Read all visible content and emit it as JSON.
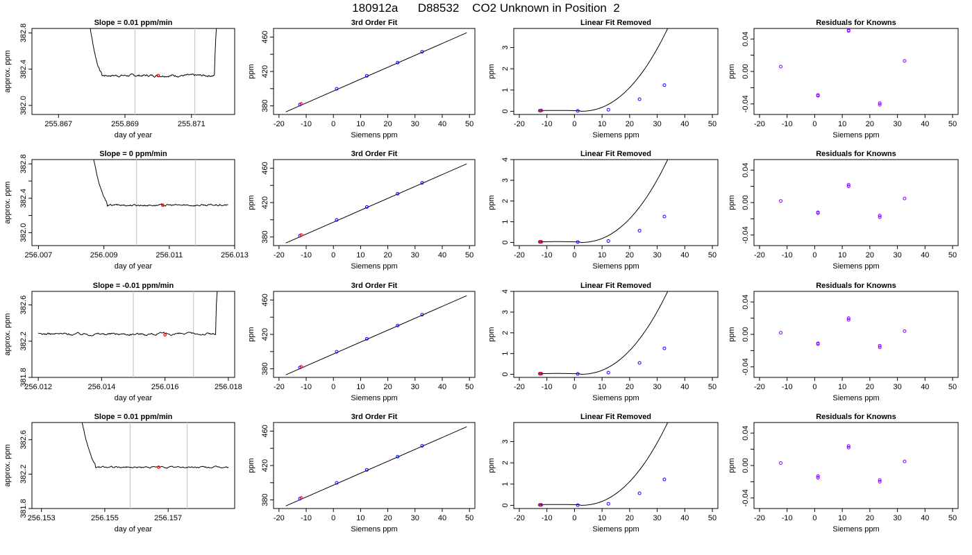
{
  "header": {
    "title": "180912a      D88532    CO2 Unknown in Position  2"
  },
  "style": {
    "trace_color": "#000000",
    "marker_color": "#ff0000",
    "known_color": "#0000ff",
    "residual_color": "#8000ff",
    "window_line_color": "#c8c8c8"
  },
  "chart_data": [
    {
      "type": "line",
      "row": 1,
      "panel": "time-series",
      "title": "Slope =  0.01  ppm/min",
      "xlabel": "day of year",
      "ylabel": "approx. ppm",
      "xlim": [
        255.8662,
        255.8723
      ],
      "ylim": [
        381.9,
        382.85
      ],
      "xticks": [
        255.867,
        255.869,
        255.871
      ],
      "xtick_labels": [
        "255.867",
        "255.869",
        "255.871"
      ],
      "yticks": [
        382.0,
        382.4,
        382.8
      ],
      "ytick_labels": [
        "382.0",
        "382.4",
        "382.8"
      ],
      "trace": {
        "x_start": 255.8678,
        "x_end": 255.8718,
        "drop_to": 382.36,
        "level": 382.33,
        "settle": 255.8683,
        "rise_at": 255.8717,
        "noise": 0.009,
        "end_value": 382.9
      },
      "window": [
        255.8693,
        255.8711
      ],
      "marker": {
        "x": 255.87,
        "y": 382.33
      }
    },
    {
      "type": "line",
      "row": 2,
      "panel": "time-series",
      "title": "Slope =  0  ppm/min",
      "xlabel": "day of year",
      "ylabel": "approx. ppm",
      "xlim": [
        256.0068,
        256.013
      ],
      "ylim": [
        381.85,
        382.85
      ],
      "xticks": [
        256.007,
        256.009,
        256.011,
        256.013
      ],
      "xtick_labels": [
        "256.007",
        "256.009",
        "256.011",
        "256.013"
      ],
      "yticks": [
        382.0,
        382.2,
        382.4,
        382.6,
        382.8
      ],
      "ytick_labels": [
        "382.0",
        "",
        "382.4",
        "",
        "382.8"
      ],
      "trace": {
        "x_start": 256.0085,
        "x_end": 256.0128,
        "drop_to": 382.36,
        "level": 382.32,
        "settle": 256.0091,
        "rise_at": null,
        "noise": 0.008,
        "end_value": 382.31
      },
      "window": [
        256.01,
        256.0118
      ],
      "marker": {
        "x": 256.0108,
        "y": 382.32
      }
    },
    {
      "type": "line",
      "row": 3,
      "panel": "time-series",
      "title": "Slope =  -0.01  ppm/min",
      "xlabel": "day of year",
      "ylabel": "approx. ppm",
      "xlim": [
        256.0118,
        256.0182
      ],
      "ylim": [
        381.8,
        382.75
      ],
      "xticks": [
        256.012,
        256.014,
        256.016,
        256.018
      ],
      "xtick_labels": [
        "256.012",
        "256.014",
        "256.016",
        "256.018"
      ],
      "yticks": [
        381.8,
        382.2,
        382.6
      ],
      "ytick_labels": [
        "381.8",
        "382.2",
        "382.6"
      ],
      "trace": {
        "x_start": 256.012,
        "x_end": 256.0177,
        "drop_to": 382.3,
        "level": 382.28,
        "settle": 256.012,
        "rise_at": 256.0176,
        "noise": 0.01,
        "end_value": 382.8
      },
      "window": [
        256.015,
        256.0169
      ],
      "marker": {
        "x": 256.016,
        "y": 382.27
      }
    },
    {
      "type": "line",
      "row": 4,
      "panel": "time-series",
      "title": "Slope =  0.01  ppm/min",
      "xlabel": "day of year",
      "ylabel": "approx. ppm",
      "xlim": [
        256.1527,
        256.1591
      ],
      "ylim": [
        381.8,
        382.8
      ],
      "xticks": [
        256.153,
        256.155,
        256.157
      ],
      "xtick_labels": [
        "256.153",
        "256.155",
        "256.157"
      ],
      "yticks": [
        381.8,
        382.2,
        382.6
      ],
      "ytick_labels": [
        "381.8",
        "382.2",
        "382.6"
      ],
      "trace": {
        "x_start": 256.1541,
        "x_end": 256.1589,
        "drop_to": 382.32,
        "level": 382.28,
        "settle": 256.1547,
        "rise_at": null,
        "noise": 0.007,
        "end_value": 382.28
      },
      "window": [
        256.1558,
        256.1576
      ],
      "marker": {
        "x": 256.1567,
        "y": 382.28
      }
    },
    {
      "type": "scatter",
      "row": 1,
      "panel": "fit",
      "title": "3rd Order Fit",
      "xlabel": "Siemens ppm",
      "ylabel": "ppm",
      "xlim": [
        -22,
        52
      ],
      "ylim": [
        370,
        470
      ],
      "xticks": [
        -20,
        -10,
        0,
        10,
        20,
        30,
        40,
        50
      ],
      "xtick_labels": [
        "-20",
        "-10",
        "0",
        "10",
        "20",
        "30",
        "40",
        "50"
      ],
      "yticks": [
        380,
        400,
        420,
        440,
        460
      ],
      "ytick_labels": [
        "380",
        "",
        "420",
        "",
        "460"
      ],
      "line": [
        [
          -17.5,
          373.0
        ],
        [
          49,
          465.0
        ]
      ],
      "knowns": [
        [
          -12.3,
          381.5
        ],
        [
          1.2,
          399.8
        ],
        [
          12.3,
          414.9
        ],
        [
          23.6,
          430.3
        ],
        [
          32.6,
          442.9
        ]
      ],
      "unknowns": [
        [
          -11.8,
          382.3
        ]
      ]
    },
    {
      "type": "scatter",
      "row": 2,
      "panel": "fit",
      "title": "3rd Order Fit",
      "xlabel": "Siemens ppm",
      "ylabel": "ppm",
      "xlim": [
        -22,
        52
      ],
      "ylim": [
        370,
        470
      ],
      "xticks": [
        -20,
        -10,
        0,
        10,
        20,
        30,
        40,
        50
      ],
      "xtick_labels": [
        "-20",
        "-10",
        "0",
        "10",
        "20",
        "30",
        "40",
        "50"
      ],
      "yticks": [
        380,
        400,
        420,
        440,
        460
      ],
      "ytick_labels": [
        "380",
        "",
        "420",
        "",
        "460"
      ],
      "line": [
        [
          -17.5,
          373.0
        ],
        [
          49,
          465.0
        ]
      ],
      "knowns": [
        [
          -12.3,
          381.5
        ],
        [
          1.2,
          399.8
        ],
        [
          12.3,
          414.9
        ],
        [
          23.6,
          430.3
        ],
        [
          32.6,
          442.9
        ]
      ],
      "unknowns": [
        [
          -11.8,
          382.3
        ]
      ]
    },
    {
      "type": "scatter",
      "row": 3,
      "panel": "fit",
      "title": "3rd Order Fit",
      "xlabel": "Siemens ppm",
      "ylabel": "ppm",
      "xlim": [
        -22,
        52
      ],
      "ylim": [
        370,
        470
      ],
      "xticks": [
        -20,
        -10,
        0,
        10,
        20,
        30,
        40,
        50
      ],
      "xtick_labels": [
        "-20",
        "-10",
        "0",
        "10",
        "20",
        "30",
        "40",
        "50"
      ],
      "yticks": [
        380,
        400,
        420,
        440,
        460
      ],
      "ytick_labels": [
        "380",
        "",
        "420",
        "",
        "460"
      ],
      "line": [
        [
          -17.5,
          373.0
        ],
        [
          49,
          465.0
        ]
      ],
      "knowns": [
        [
          -12.3,
          381.5
        ],
        [
          1.2,
          399.8
        ],
        [
          12.3,
          414.9
        ],
        [
          23.6,
          430.3
        ],
        [
          32.6,
          442.9
        ]
      ],
      "unknowns": [
        [
          -11.8,
          382.3
        ]
      ]
    },
    {
      "type": "scatter",
      "row": 4,
      "panel": "fit",
      "title": "3rd Order Fit",
      "xlabel": "Siemens ppm",
      "ylabel": "ppm",
      "xlim": [
        -22,
        52
      ],
      "ylim": [
        370,
        470
      ],
      "xticks": [
        -20,
        -10,
        0,
        10,
        20,
        30,
        40,
        50
      ],
      "xtick_labels": [
        "-20",
        "-10",
        "0",
        "10",
        "20",
        "30",
        "40",
        "50"
      ],
      "yticks": [
        380,
        400,
        420,
        440,
        460
      ],
      "ytick_labels": [
        "380",
        "",
        "420",
        "",
        "460"
      ],
      "line": [
        [
          -17.5,
          373.0
        ],
        [
          49,
          465.0
        ]
      ],
      "knowns": [
        [
          -12.3,
          381.5
        ],
        [
          1.2,
          399.8
        ],
        [
          12.3,
          414.9
        ],
        [
          23.6,
          430.3
        ],
        [
          32.6,
          442.9
        ]
      ],
      "unknowns": [
        [
          -11.8,
          382.3
        ]
      ]
    },
    {
      "type": "scatter",
      "row": 1,
      "panel": "linear-removed",
      "title": "Linear Fit Removed",
      "xlabel": "Siemens ppm",
      "ylabel": "ppm",
      "xlim": [
        -22,
        52
      ],
      "ylim": [
        -0.15,
        3.9
      ],
      "xticks": [
        -20,
        -10,
        0,
        10,
        20,
        30,
        40,
        50
      ],
      "xtick_labels": [
        "-20",
        "-10",
        "0",
        "10",
        "20",
        "30",
        "40",
        "50"
      ],
      "yticks": [
        0,
        1,
        2,
        3
      ],
      "ytick_labels": [
        "0",
        "1",
        "2",
        "3"
      ],
      "curve": {
        "x_start": -12.5,
        "x_end": 49,
        "x0": 2.0,
        "k": 0.00193
      },
      "knowns": [
        [
          -12.3,
          0.03
        ],
        [
          1.2,
          0.02
        ],
        [
          12.3,
          0.07
        ],
        [
          23.6,
          0.57
        ],
        [
          32.6,
          1.23
        ]
      ],
      "unknowns": [
        [
          -12.0,
          0.04
        ],
        [
          -12.6,
          0.03
        ]
      ]
    },
    {
      "type": "scatter",
      "row": 2,
      "panel": "linear-removed",
      "title": "Linear Fit Removed",
      "xlabel": "Siemens ppm",
      "ylabel": "ppm",
      "xlim": [
        -22,
        52
      ],
      "ylim": [
        -0.15,
        4.0
      ],
      "xticks": [
        -20,
        -10,
        0,
        10,
        20,
        30,
        40,
        50
      ],
      "xtick_labels": [
        "-20",
        "-10",
        "0",
        "10",
        "20",
        "30",
        "40",
        "50"
      ],
      "yticks": [
        0,
        1,
        2,
        3,
        4
      ],
      "ytick_labels": [
        "0",
        "1",
        "2",
        "3",
        "4"
      ],
      "curve": {
        "x_start": -12.5,
        "x_end": 49,
        "x0": 2.0,
        "k": 0.00198
      },
      "knowns": [
        [
          -12.3,
          0.03
        ],
        [
          1.2,
          0.02
        ],
        [
          12.3,
          0.07
        ],
        [
          23.6,
          0.57
        ],
        [
          32.6,
          1.25
        ]
      ],
      "unknowns": [
        [
          -12.0,
          0.03
        ],
        [
          -12.6,
          0.03
        ]
      ]
    },
    {
      "type": "scatter",
      "row": 3,
      "panel": "linear-removed",
      "title": "Linear Fit Removed",
      "xlabel": "Siemens ppm",
      "ylabel": "ppm",
      "xlim": [
        -22,
        52
      ],
      "ylim": [
        -0.15,
        4.0
      ],
      "xticks": [
        -20,
        -10,
        0,
        10,
        20,
        30,
        40,
        50
      ],
      "xtick_labels": [
        "-20",
        "-10",
        "0",
        "10",
        "20",
        "30",
        "40",
        "50"
      ],
      "yticks": [
        0,
        1,
        2,
        3,
        4
      ],
      "ytick_labels": [
        "0",
        "1",
        "2",
        "3",
        "4"
      ],
      "curve": {
        "x_start": -12.5,
        "x_end": 49,
        "x0": 2.0,
        "k": 0.00198
      },
      "knowns": [
        [
          -12.3,
          0.03
        ],
        [
          1.2,
          0.02
        ],
        [
          12.3,
          0.08
        ],
        [
          23.6,
          0.55
        ],
        [
          32.6,
          1.25
        ]
      ],
      "unknowns": [
        [
          -12.0,
          0.03
        ],
        [
          -12.6,
          0.03
        ]
      ]
    },
    {
      "type": "scatter",
      "row": 4,
      "panel": "linear-removed",
      "title": "Linear Fit Removed",
      "xlabel": "Siemens ppm",
      "ylabel": "ppm",
      "xlim": [
        -22,
        52
      ],
      "ylim": [
        -0.15,
        3.9
      ],
      "xticks": [
        -20,
        -10,
        0,
        10,
        20,
        30,
        40,
        50
      ],
      "xtick_labels": [
        "-20",
        "-10",
        "0",
        "10",
        "20",
        "30",
        "40",
        "50"
      ],
      "yticks": [
        0,
        1,
        2,
        3
      ],
      "ytick_labels": [
        "0",
        "1",
        "2",
        "3"
      ],
      "curve": {
        "x_start": -12.5,
        "x_end": 49,
        "x0": 2.0,
        "k": 0.00193
      },
      "knowns": [
        [
          -12.3,
          0.02
        ],
        [
          1.2,
          0.01
        ],
        [
          12.3,
          0.07
        ],
        [
          23.6,
          0.57
        ],
        [
          32.6,
          1.22
        ]
      ],
      "unknowns": [
        [
          -12.0,
          0.02
        ],
        [
          -12.6,
          0.02
        ]
      ]
    },
    {
      "type": "scatter",
      "row": 1,
      "panel": "residuals",
      "title": "Residuals for Knowns",
      "xlabel": "Siemens ppm",
      "ylabel": "ppm",
      "xlim": [
        -22,
        52
      ],
      "ylim": [
        -0.053,
        0.053
      ],
      "xticks": [
        -20,
        -10,
        0,
        10,
        20,
        30,
        40,
        50
      ],
      "xtick_labels": [
        "-20",
        "-10",
        "0",
        "10",
        "20",
        "30",
        "40",
        "50"
      ],
      "yticks": [
        -0.04,
        -0.02,
        0.0,
        0.02,
        0.04
      ],
      "ytick_labels": [
        "-0.04",
        "",
        "0.00",
        "",
        "0.04"
      ],
      "knowns": [
        [
          -12.3,
          0.006
        ],
        [
          1.2,
          -0.029
        ],
        [
          1.2,
          -0.03
        ],
        [
          12.3,
          0.05
        ],
        [
          12.3,
          0.051
        ],
        [
          23.6,
          -0.039
        ],
        [
          23.6,
          -0.041
        ],
        [
          32.6,
          0.013
        ]
      ]
    },
    {
      "type": "scatter",
      "row": 2,
      "panel": "residuals",
      "title": "Residuals for Knowns",
      "xlabel": "Siemens ppm",
      "ylabel": "ppm",
      "xlim": [
        -22,
        52
      ],
      "ylim": [
        -0.053,
        0.053
      ],
      "xticks": [
        -20,
        -10,
        0,
        10,
        20,
        30,
        40,
        50
      ],
      "xtick_labels": [
        "-20",
        "-10",
        "0",
        "10",
        "20",
        "30",
        "40",
        "50"
      ],
      "yticks": [
        -0.04,
        -0.02,
        0.0,
        0.02,
        0.04
      ],
      "ytick_labels": [
        "-0.04",
        "",
        "0.00",
        "",
        "0.04"
      ],
      "knowns": [
        [
          -12.3,
          0.002
        ],
        [
          1.2,
          -0.012
        ],
        [
          1.2,
          -0.013
        ],
        [
          12.3,
          0.02
        ],
        [
          12.3,
          0.022
        ],
        [
          23.6,
          -0.016
        ],
        [
          23.6,
          -0.018
        ],
        [
          32.6,
          0.005
        ]
      ]
    },
    {
      "type": "scatter",
      "row": 3,
      "panel": "residuals",
      "title": "Residuals for Knowns",
      "xlabel": "Siemens ppm",
      "ylabel": "ppm",
      "xlim": [
        -22,
        52
      ],
      "ylim": [
        -0.053,
        0.053
      ],
      "xticks": [
        -20,
        -10,
        0,
        10,
        20,
        30,
        40,
        50
      ],
      "xtick_labels": [
        "-20",
        "-10",
        "0",
        "10",
        "20",
        "30",
        "40",
        "50"
      ],
      "yticks": [
        -0.04,
        -0.02,
        0.0,
        0.02,
        0.04
      ],
      "ytick_labels": [
        "-0.04",
        "",
        "0.00",
        "",
        "0.04"
      ],
      "knowns": [
        [
          -12.3,
          0.002
        ],
        [
          1.2,
          -0.011
        ],
        [
          1.2,
          -0.012
        ],
        [
          12.3,
          0.018
        ],
        [
          12.3,
          0.02
        ],
        [
          23.6,
          -0.014
        ],
        [
          23.6,
          -0.016
        ],
        [
          32.6,
          0.004
        ]
      ]
    },
    {
      "type": "scatter",
      "row": 4,
      "panel": "residuals",
      "title": "Residuals for Knowns",
      "xlabel": "Siemens ppm",
      "ylabel": "ppm",
      "xlim": [
        -22,
        52
      ],
      "ylim": [
        -0.053,
        0.053
      ],
      "xticks": [
        -20,
        -10,
        0,
        10,
        20,
        30,
        40,
        50
      ],
      "xtick_labels": [
        "-20",
        "-10",
        "0",
        "10",
        "20",
        "30",
        "40",
        "50"
      ],
      "yticks": [
        -0.04,
        -0.02,
        0.0,
        0.02,
        0.04
      ],
      "ytick_labels": [
        "-0.04",
        "",
        "0.00",
        "",
        "0.04"
      ],
      "knowns": [
        [
          -12.3,
          0.003
        ],
        [
          1.2,
          -0.013
        ],
        [
          1.2,
          -0.015
        ],
        [
          12.3,
          0.022
        ],
        [
          12.3,
          0.024
        ],
        [
          23.6,
          -0.018
        ],
        [
          23.6,
          -0.02
        ],
        [
          32.6,
          0.005
        ]
      ]
    }
  ]
}
